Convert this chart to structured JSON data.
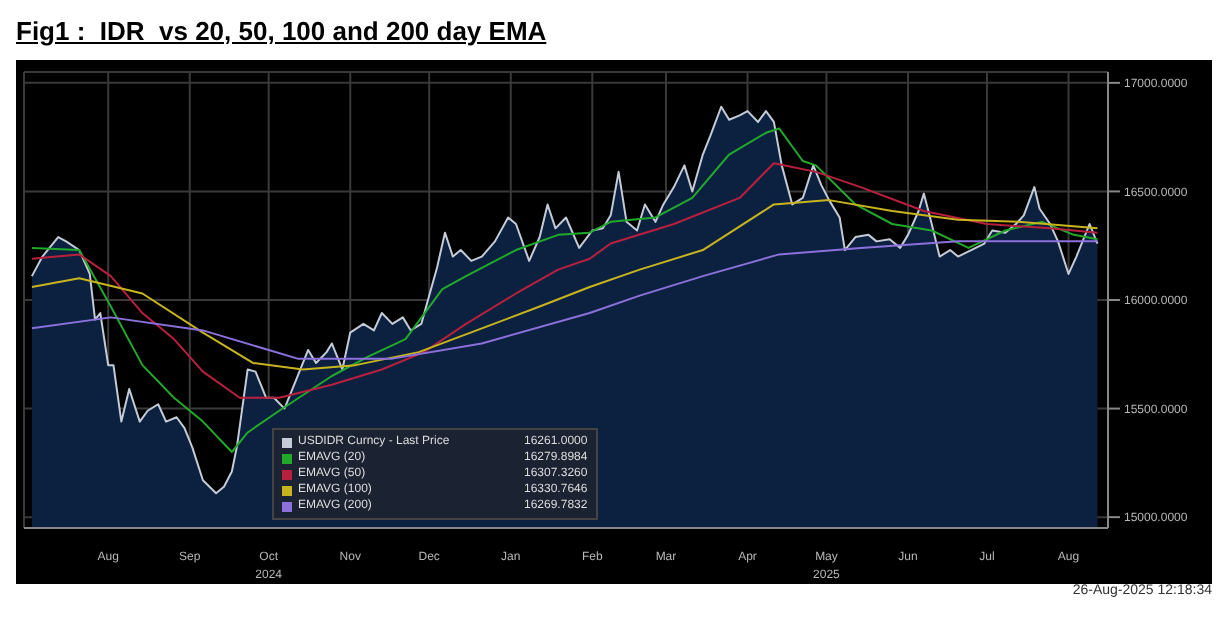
{
  "chart_data": {
    "type": "line",
    "title": "Fig1 :  IDR  vs 20, 50, 100 and 200 day EMA",
    "xlim": [
      "2024-07-14",
      "2025-08-30"
    ],
    "xticks": [
      {
        "value": "2024-08-15",
        "label": "Aug"
      },
      {
        "value": "2024-09-15",
        "label": "Sep"
      },
      {
        "value": "2024-10-15",
        "label": "Oct 2024"
      },
      {
        "value": "2024-11-15",
        "label": "Nov"
      },
      {
        "value": "2024-12-15",
        "label": "Dec"
      },
      {
        "value": "2025-01-15",
        "label": "Jan"
      },
      {
        "value": "2025-02-15",
        "label": "Feb"
      },
      {
        "value": "2025-03-15",
        "label": "Mar"
      },
      {
        "value": "2025-04-15",
        "label": "Apr"
      },
      {
        "value": "2025-05-15",
        "label": "May 2025"
      },
      {
        "value": "2025-06-15",
        "label": "Jun"
      },
      {
        "value": "2025-07-15",
        "label": "Jul"
      },
      {
        "value": "2025-08-15",
        "label": "Aug"
      }
    ],
    "ylim": [
      14950,
      17050
    ],
    "yticks": [
      {
        "value": 15000,
        "label": "15000.0000"
      },
      {
        "value": 15500,
        "label": "15500.0000"
      },
      {
        "value": 16000,
        "label": "16000.0000"
      },
      {
        "value": 16500,
        "label": "16500.0000"
      },
      {
        "value": 17000,
        "label": "17000.0000"
      }
    ],
    "grid": true,
    "legend": "bottom",
    "annotations": [
      "16261.0000",
      "16279.8984",
      "16307.3260",
      "16330.7646",
      "16269.7832",
      "26-Aug-2025 12:18:34"
    ],
    "series": [
      {
        "name": "USDIDR Curncy - Last Price",
        "type": "area",
        "color": "#c4cad6",
        "x": [
          "2024-07-17",
          "2024-07-21",
          "2024-07-27",
          "2024-07-30",
          "2024-08-04",
          "2024-08-08",
          "2024-08-10",
          "2024-08-12",
          "2024-08-15",
          "2024-08-17",
          "2024-08-20",
          "2024-08-23",
          "2024-08-27",
          "2024-08-30",
          "2024-09-03",
          "2024-09-06",
          "2024-09-10",
          "2024-09-13",
          "2024-09-16",
          "2024-09-20",
          "2024-09-25",
          "2024-09-28",
          "2024-10-01",
          "2024-10-03",
          "2024-10-07",
          "2024-10-10",
          "2024-10-14",
          "2024-10-17",
          "2024-10-21",
          "2024-10-25",
          "2024-10-30",
          "2024-11-02",
          "2024-11-06",
          "2024-11-08",
          "2024-11-12",
          "2024-11-15",
          "2024-11-20",
          "2024-11-24",
          "2024-11-27",
          "2024-12-01",
          "2024-12-05",
          "2024-12-08",
          "2024-12-12",
          "2024-12-15",
          "2024-12-18",
          "2024-12-21",
          "2024-12-24",
          "2024-12-27",
          "2024-12-31",
          "2025-01-04",
          "2025-01-09",
          "2025-01-14",
          "2025-01-17",
          "2025-01-22",
          "2025-01-26",
          "2025-01-29",
          "2025-02-01",
          "2025-02-05",
          "2025-02-10",
          "2025-02-15",
          "2025-02-19",
          "2025-02-22",
          "2025-02-25",
          "2025-02-28",
          "2025-03-04",
          "2025-03-07",
          "2025-03-11",
          "2025-03-14",
          "2025-03-18",
          "2025-03-22",
          "2025-03-25",
          "2025-03-29",
          "2025-04-01",
          "2025-04-05",
          "2025-04-08",
          "2025-04-12",
          "2025-04-15",
          "2025-04-19",
          "2025-04-22",
          "2025-04-25",
          "2025-04-28",
          "2025-05-02",
          "2025-05-06",
          "2025-05-10",
          "2025-05-13",
          "2025-05-16",
          "2025-05-20",
          "2025-05-22",
          "2025-05-26",
          "2025-05-31",
          "2025-06-03",
          "2025-06-08",
          "2025-06-12",
          "2025-06-15",
          "2025-06-19",
          "2025-06-21",
          "2025-06-24",
          "2025-06-27",
          "2025-07-01",
          "2025-07-04",
          "2025-07-09",
          "2025-07-14",
          "2025-07-17",
          "2025-07-22",
          "2025-07-26",
          "2025-07-29",
          "2025-08-02",
          "2025-08-04",
          "2025-08-08",
          "2025-08-11",
          "2025-08-15",
          "2025-08-18",
          "2025-08-23",
          "2025-08-26"
        ],
        "values": [
          16110,
          16200,
          16290,
          16270,
          16230,
          16120,
          15910,
          15940,
          15700,
          15700,
          15440,
          15590,
          15440,
          15490,
          15520,
          15440,
          15460,
          15410,
          15320,
          15170,
          15110,
          15140,
          15210,
          15330,
          15680,
          15670,
          15550,
          15550,
          15500,
          15620,
          15770,
          15710,
          15760,
          15800,
          15680,
          15850,
          15890,
          15860,
          15940,
          15890,
          15920,
          15860,
          15890,
          16020,
          16150,
          16310,
          16200,
          16230,
          16180,
          16200,
          16270,
          16380,
          16350,
          16180,
          16290,
          16440,
          16330,
          16380,
          16240,
          16320,
          16330,
          16390,
          16590,
          16360,
          16320,
          16440,
          16360,
          16440,
          16520,
          16620,
          16500,
          16670,
          16760,
          16890,
          16830,
          16850,
          16870,
          16820,
          16870,
          16820,
          16620,
          16440,
          16470,
          16620,
          16530,
          16460,
          16380,
          16230,
          16290,
          16300,
          16270,
          16280,
          16240,
          16300,
          16410,
          16490,
          16350,
          16200,
          16230,
          16200,
          16230,
          16260,
          16320,
          16310,
          16350,
          16390,
          16520,
          16420,
          16350,
          16270,
          16120,
          16200,
          16350,
          16260
        ]
      },
      {
        "name": "EMAVG (20)",
        "color": "#22a82a",
        "x": [
          "2024-07-17",
          "2024-08-04",
          "2024-08-16",
          "2024-08-28",
          "2024-09-09",
          "2024-09-20",
          "2024-10-01",
          "2024-10-07",
          "2024-10-19",
          "2024-11-08",
          "2024-11-22",
          "2024-12-06",
          "2024-12-20",
          "2024-12-29",
          "2025-01-17",
          "2025-02-02",
          "2025-02-14",
          "2025-02-22",
          "2025-03-11",
          "2025-03-25",
          "2025-04-08",
          "2025-04-22",
          "2025-04-27",
          "2025-05-06",
          "2025-05-11",
          "2025-05-26",
          "2025-06-09",
          "2025-06-24",
          "2025-07-08",
          "2025-07-22",
          "2025-08-05",
          "2025-08-17",
          "2025-08-26"
        ],
        "values": [
          16240,
          16230,
          15970,
          15700,
          15550,
          15440,
          15300,
          15390,
          15490,
          15650,
          15740,
          15820,
          16050,
          16110,
          16230,
          16300,
          16310,
          16360,
          16380,
          16470,
          16670,
          16770,
          16790,
          16640,
          16620,
          16440,
          16350,
          16320,
          16240,
          16320,
          16360,
          16300,
          16280
        ]
      },
      {
        "name": "EMAVG (50)",
        "color": "#b8203e",
        "x": [
          "2024-07-17",
          "2024-08-04",
          "2024-08-16",
          "2024-08-28",
          "2024-09-09",
          "2024-09-20",
          "2024-10-04",
          "2024-10-19",
          "2024-11-08",
          "2024-11-27",
          "2024-12-13",
          "2024-12-29",
          "2025-01-17",
          "2025-02-02",
          "2025-02-14",
          "2025-02-22",
          "2025-03-18",
          "2025-04-12",
          "2025-04-25",
          "2025-05-11",
          "2025-05-28",
          "2025-06-21",
          "2025-07-15",
          "2025-08-08",
          "2025-08-26"
        ],
        "values": [
          16190,
          16210,
          16110,
          15940,
          15820,
          15670,
          15550,
          15550,
          15610,
          15680,
          15760,
          15890,
          16030,
          16140,
          16190,
          16260,
          16350,
          16470,
          16630,
          16590,
          16520,
          16410,
          16350,
          16330,
          16310
        ]
      },
      {
        "name": "EMAVG (100)",
        "color": "#c8b41e",
        "x": [
          "2024-07-17",
          "2024-08-04",
          "2024-08-28",
          "2024-09-20",
          "2024-10-09",
          "2024-10-28",
          "2024-11-17",
          "2024-12-11",
          "2025-01-02",
          "2025-01-26",
          "2025-02-14",
          "2025-03-05",
          "2025-03-29",
          "2025-04-25",
          "2025-05-16",
          "2025-06-09",
          "2025-07-04",
          "2025-07-27",
          "2025-08-26"
        ],
        "values": [
          16060,
          16100,
          16030,
          15850,
          15710,
          15680,
          15700,
          15760,
          15860,
          15970,
          16060,
          16140,
          16230,
          16440,
          16460,
          16410,
          16370,
          16360,
          16330
        ]
      },
      {
        "name": "EMAVG (200)",
        "color": "#8c70dc",
        "x": [
          "2024-07-17",
          "2024-08-16",
          "2024-09-20",
          "2024-10-26",
          "2024-12-01",
          "2025-01-04",
          "2025-02-14",
          "2025-03-05",
          "2025-03-29",
          "2025-04-27",
          "2025-05-28",
          "2025-07-04",
          "2025-08-26"
        ],
        "values": [
          15870,
          15920,
          15860,
          15730,
          15730,
          15800,
          15940,
          16020,
          16110,
          16210,
          16240,
          16270,
          16270
        ]
      }
    ]
  }
}
